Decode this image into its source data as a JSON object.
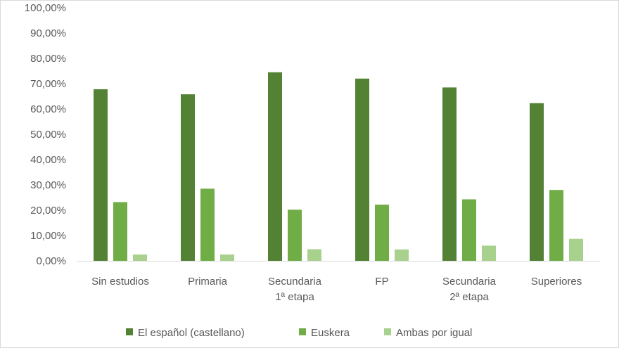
{
  "chart_data": {
    "type": "bar",
    "categories": [
      [
        "Sin estudios"
      ],
      [
        "Primaria"
      ],
      [
        "Secundaria",
        "1ª etapa"
      ],
      [
        "FP"
      ],
      [
        "Secundaria",
        "2ª etapa"
      ],
      [
        "Superiores"
      ]
    ],
    "series": [
      {
        "name": "El español (castellano)",
        "color": "#548235",
        "values": [
          67.8,
          65.8,
          74.5,
          72.0,
          68.5,
          62.3
        ]
      },
      {
        "name": "Euskera",
        "color": "#70ad47",
        "values": [
          23.2,
          28.5,
          20.2,
          22.2,
          24.3,
          28.0
        ]
      },
      {
        "name": "Ambas por igual",
        "color": "#a9d18e",
        "values": [
          2.5,
          2.5,
          4.6,
          4.5,
          6.0,
          8.7
        ]
      }
    ],
    "ylim": [
      0,
      100
    ],
    "yticks": [
      "0,00%",
      "10,00%",
      "20,00%",
      "30,00%",
      "40,00%",
      "50,00%",
      "60,00%",
      "70,00%",
      "80,00%",
      "90,00%",
      "100,00%"
    ],
    "legend_position": "bottom",
    "grid": false
  }
}
